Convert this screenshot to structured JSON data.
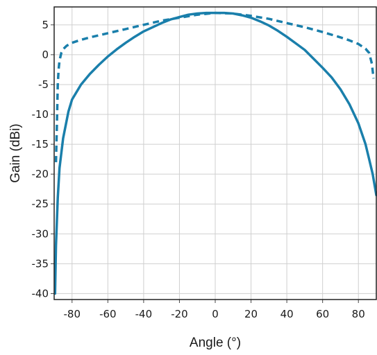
{
  "chart_data": {
    "type": "line",
    "title": "",
    "xlabel": "Angle (°)",
    "ylabel": "Gain (dBi)",
    "xlim": [
      -90,
      90
    ],
    "ylim": [
      -41,
      8
    ],
    "xticks": [
      -80,
      -60,
      -40,
      -20,
      0,
      20,
      40,
      60,
      80
    ],
    "yticks": [
      5,
      0,
      -5,
      -10,
      -15,
      -20,
      -25,
      -30,
      -35,
      -40
    ],
    "grid": true,
    "legend": "none",
    "series": [
      {
        "style": "solid",
        "color": "#1a7fab",
        "x": [
          -89.5,
          -89,
          -88,
          -87,
          -85,
          -82,
          -80,
          -75,
          -70,
          -65,
          -60,
          -55,
          -50,
          -45,
          -40,
          -35,
          -30,
          -25,
          -20,
          -15,
          -10,
          -5,
          0,
          5,
          10,
          15,
          20,
          25,
          30,
          35,
          40,
          45,
          50,
          55,
          60,
          65,
          70,
          75,
          80,
          84,
          86,
          88,
          90
        ],
        "y": [
          -40,
          -32,
          -24,
          -19,
          -14,
          -9.5,
          -7.5,
          -5,
          -3.2,
          -1.7,
          -0.3,
          0.9,
          2.0,
          3.0,
          3.9,
          4.6,
          5.3,
          5.9,
          6.3,
          6.7,
          6.9,
          7.0,
          7.0,
          7.0,
          6.9,
          6.6,
          6.2,
          5.6,
          4.9,
          4.0,
          3.0,
          1.9,
          0.8,
          -0.7,
          -2.2,
          -3.8,
          -5.8,
          -8.3,
          -11.5,
          -15,
          -17.5,
          -20,
          -23.5
        ]
      },
      {
        "style": "dashed",
        "color": "#1a7fab",
        "x": [
          -89,
          -88.5,
          -88,
          -87.5,
          -87,
          -86,
          -85,
          -83,
          -80,
          -75,
          -70,
          -60,
          -50,
          -40,
          -30,
          -20,
          -10,
          0,
          10,
          20,
          30,
          40,
          50,
          60,
          70,
          75,
          80,
          84,
          86,
          87.5,
          88.5
        ],
        "y": [
          -18,
          -12,
          -5,
          -2.5,
          -1,
          0.3,
          0.9,
          1.5,
          2.0,
          2.5,
          2.9,
          3.6,
          4.3,
          5.0,
          5.7,
          6.2,
          6.7,
          7.0,
          6.9,
          6.5,
          6.0,
          5.3,
          4.6,
          3.8,
          2.9,
          2.4,
          1.8,
          1.0,
          0.3,
          -1.5,
          -4
        ]
      }
    ]
  }
}
